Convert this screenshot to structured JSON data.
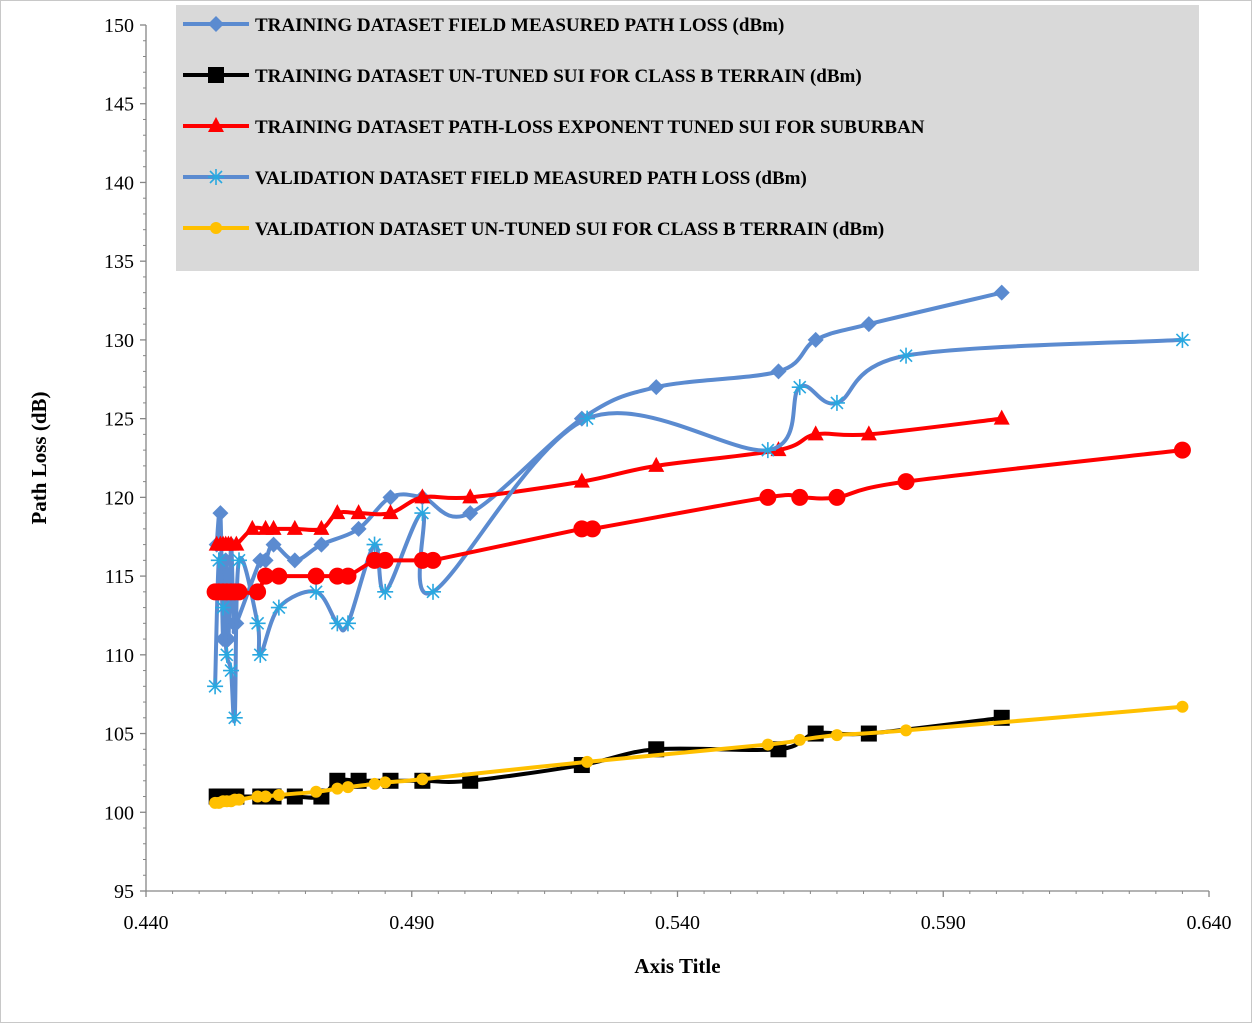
{
  "chart_data": {
    "type": "line",
    "title": "",
    "xlabel": "Axis Title",
    "ylabel": "Path Loss (dB)",
    "xlim": [
      0.44,
      0.64
    ],
    "ylim": [
      95,
      150
    ],
    "x_ticks": [
      "0.440",
      "0.490",
      "0.540",
      "0.590",
      "0.640"
    ],
    "y_ticks": [
      "95",
      "100",
      "105",
      "110",
      "115",
      "120",
      "125",
      "130",
      "135",
      "140",
      "145",
      "150"
    ],
    "grid": false,
    "legend_position": "top",
    "series": [
      {
        "name": "TRAINING DATASET FIELD MEASURED PATH LOSS (dBm)",
        "color": "#5B8BD0",
        "marker": "diamond",
        "points": [
          [
            0.4533,
            117
          ],
          [
            0.454,
            119
          ],
          [
            0.4545,
            111
          ],
          [
            0.455,
            116
          ],
          [
            0.4555,
            111
          ],
          [
            0.456,
            117
          ],
          [
            0.4565,
            112
          ],
          [
            0.457,
            112
          ],
          [
            0.4615,
            116
          ],
          [
            0.4625,
            116
          ],
          [
            0.464,
            117
          ],
          [
            0.468,
            116
          ],
          [
            0.473,
            117
          ],
          [
            0.48,
            118
          ],
          [
            0.486,
            120
          ],
          [
            0.492,
            120
          ],
          [
            0.501,
            119
          ],
          [
            0.522,
            125
          ],
          [
            0.536,
            127
          ],
          [
            0.559,
            128
          ],
          [
            0.566,
            130
          ],
          [
            0.576,
            131
          ],
          [
            0.601,
            133
          ]
        ]
      },
      {
        "name": "TRAINING DATASET UN-TUNED SUI FOR CLASS B TERRAIN  (dBm)",
        "color": "#000000",
        "marker": "square",
        "points": [
          [
            0.4533,
            101
          ],
          [
            0.454,
            101
          ],
          [
            0.4545,
            101
          ],
          [
            0.455,
            101
          ],
          [
            0.4555,
            101
          ],
          [
            0.456,
            101
          ],
          [
            0.4565,
            101
          ],
          [
            0.457,
            101
          ],
          [
            0.4615,
            101
          ],
          [
            0.4625,
            101
          ],
          [
            0.464,
            101
          ],
          [
            0.468,
            101
          ],
          [
            0.473,
            101
          ],
          [
            0.476,
            102
          ],
          [
            0.48,
            102
          ],
          [
            0.486,
            102
          ],
          [
            0.492,
            102
          ],
          [
            0.501,
            102
          ],
          [
            0.522,
            103
          ],
          [
            0.536,
            104
          ],
          [
            0.559,
            104
          ],
          [
            0.566,
            105
          ],
          [
            0.576,
            105
          ],
          [
            0.601,
            106
          ]
        ]
      },
      {
        "name": "TRAINING DATASET PATH-LOSS EXPONENT  TUNED SUI FOR SUBURBAN",
        "color": "#FF0000",
        "marker": "triangle",
        "points": [
          [
            0.4533,
            117
          ],
          [
            0.454,
            117
          ],
          [
            0.4545,
            117
          ],
          [
            0.455,
            117
          ],
          [
            0.4555,
            117
          ],
          [
            0.456,
            117
          ],
          [
            0.457,
            117
          ],
          [
            0.46,
            118
          ],
          [
            0.4625,
            118
          ],
          [
            0.464,
            118
          ],
          [
            0.468,
            118
          ],
          [
            0.473,
            118
          ],
          [
            0.476,
            119
          ],
          [
            0.48,
            119
          ],
          [
            0.486,
            119
          ],
          [
            0.492,
            120
          ],
          [
            0.501,
            120
          ],
          [
            0.522,
            121
          ],
          [
            0.536,
            122
          ],
          [
            0.559,
            123
          ],
          [
            0.566,
            124
          ],
          [
            0.576,
            124
          ],
          [
            0.601,
            125
          ]
        ]
      },
      {
        "name": "VALIDATION DATASET  FIELD MEASURED PATH LOSS (dBm)",
        "color": "#5B8BD0",
        "marker": "asterisk",
        "points": [
          [
            0.453,
            108
          ],
          [
            0.4537,
            116
          ],
          [
            0.4545,
            113
          ],
          [
            0.4552,
            110
          ],
          [
            0.456,
            109
          ],
          [
            0.4567,
            106
          ],
          [
            0.4575,
            116
          ],
          [
            0.461,
            112
          ],
          [
            0.4615,
            110
          ],
          [
            0.465,
            113
          ],
          [
            0.472,
            114
          ],
          [
            0.476,
            112
          ],
          [
            0.478,
            112
          ],
          [
            0.483,
            117
          ],
          [
            0.485,
            114
          ],
          [
            0.492,
            119
          ],
          [
            0.494,
            114
          ],
          [
            0.523,
            125
          ],
          [
            0.557,
            123
          ],
          [
            0.563,
            127
          ],
          [
            0.57,
            126
          ],
          [
            0.583,
            129
          ],
          [
            0.635,
            130
          ]
        ]
      },
      {
        "name": "VALIDATION DATASET  UN-TUNED SUI FOR CLASS B TERRAIN  (dBm)",
        "color": "#FFC000",
        "marker": "circle",
        "points": [
          [
            0.453,
            100.6
          ],
          [
            0.4537,
            100.6
          ],
          [
            0.4545,
            100.7
          ],
          [
            0.4552,
            100.7
          ],
          [
            0.456,
            100.7
          ],
          [
            0.4567,
            100.8
          ],
          [
            0.4575,
            100.8
          ],
          [
            0.461,
            101.0
          ],
          [
            0.4625,
            101.0
          ],
          [
            0.465,
            101.1
          ],
          [
            0.472,
            101.3
          ],
          [
            0.476,
            101.5
          ],
          [
            0.478,
            101.6
          ],
          [
            0.483,
            101.8
          ],
          [
            0.485,
            101.9
          ],
          [
            0.492,
            102.1
          ],
          [
            0.523,
            103.2
          ],
          [
            0.557,
            104.3
          ],
          [
            0.563,
            104.6
          ],
          [
            0.57,
            104.9
          ],
          [
            0.583,
            105.2
          ],
          [
            0.635,
            106.7
          ]
        ]
      },
      {
        "name": "",
        "color": "#FF0000",
        "marker": "circle",
        "points": [
          [
            0.453,
            114
          ],
          [
            0.4537,
            114
          ],
          [
            0.4545,
            114
          ],
          [
            0.4552,
            114
          ],
          [
            0.456,
            114
          ],
          [
            0.4567,
            114
          ],
          [
            0.4575,
            114
          ],
          [
            0.461,
            114
          ],
          [
            0.4625,
            115
          ],
          [
            0.465,
            115
          ],
          [
            0.472,
            115
          ],
          [
            0.476,
            115
          ],
          [
            0.478,
            115
          ],
          [
            0.483,
            116
          ],
          [
            0.485,
            116
          ],
          [
            0.492,
            116
          ],
          [
            0.494,
            116
          ],
          [
            0.522,
            118
          ],
          [
            0.524,
            118
          ],
          [
            0.557,
            120
          ],
          [
            0.563,
            120
          ],
          [
            0.57,
            120
          ],
          [
            0.583,
            121
          ],
          [
            0.635,
            123
          ]
        ]
      }
    ],
    "legend_order": [
      0,
      1,
      2,
      3,
      4
    ]
  }
}
